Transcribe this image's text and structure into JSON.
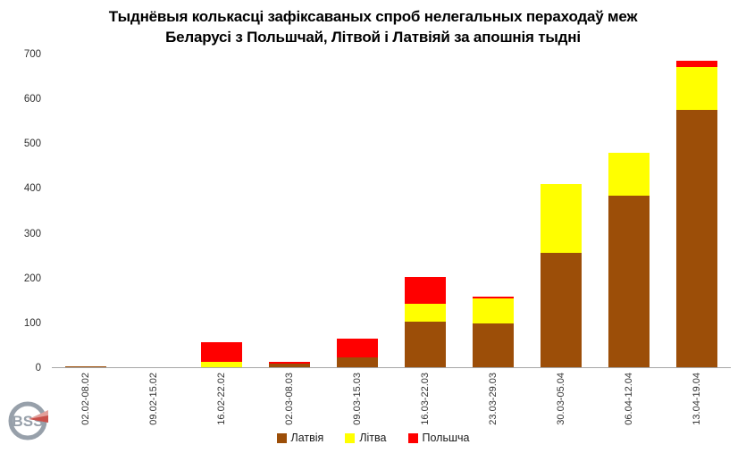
{
  "title": {
    "line1": "Тыднёвыя колькасці зафіксаваных спроб нелегальных пераходаў меж",
    "line2": "Беларусі з Польшчай, Літвой і Латвіяй за апошнія тыдні"
  },
  "chart_data": {
    "type": "bar",
    "stacked": true,
    "title": "Тыднёвыя колькасці зафіксаваных спроб нелегальных пераходаў меж Беларусі з Польшчай, Літвой і Латвіяй за апошнія тыдні",
    "categories": [
      "02.02-08.02",
      "09.02-15.02",
      "16.02-22.02",
      "02.03-08.03",
      "09.03-15.03",
      "16.03-22.03",
      "23.03-29.03",
      "30.03-05.04",
      "06.04-12.04",
      "13.04-19.04"
    ],
    "series": [
      {
        "name": "Латвія",
        "color": "#9C4E08",
        "values": [
          3,
          0,
          0,
          8,
          22,
          102,
          98,
          255,
          382,
          575
        ]
      },
      {
        "name": "Літва",
        "color": "#FFFF00",
        "values": [
          0,
          0,
          11,
          0,
          0,
          40,
          55,
          153,
          96,
          95
        ]
      },
      {
        "name": "Польшча",
        "color": "#FF0000",
        "values": [
          0,
          0,
          45,
          4,
          41,
          60,
          5,
          0,
          0,
          15
        ]
      }
    ],
    "totals": [
      3,
      0,
      56,
      12,
      63,
      202,
      158,
      408,
      478,
      685
    ],
    "xlabel": "",
    "ylabel": "",
    "ylim": [
      0,
      700
    ],
    "yticks": [
      0,
      100,
      200,
      300,
      400,
      500,
      600,
      700
    ],
    "grid": false,
    "legend_position": "bottom",
    "axis_line_color": "#A6A6A6"
  },
  "legend": {
    "items": [
      {
        "label": "Латвія",
        "color": "#9C4E08"
      },
      {
        "label": "Літва",
        "color": "#FFFF00"
      },
      {
        "label": "Польшча",
        "color": "#FF0000"
      }
    ]
  },
  "logo": {
    "monogram": "BSS",
    "ring_color": "#97A0AA",
    "wedge_dark": "#C9504B",
    "wedge_light": "#E2A09B"
  }
}
